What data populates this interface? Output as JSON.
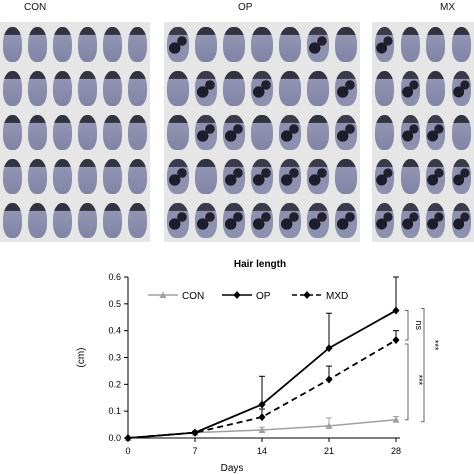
{
  "panels": [
    {
      "label": "CON"
    },
    {
      "label": "OP"
    },
    {
      "label": "MX"
    }
  ],
  "chart_data": {
    "type": "line",
    "title": "Hair length",
    "xlabel": "Days",
    "ylabel": "(cm)",
    "x": [
      0,
      7,
      14,
      21,
      28
    ],
    "xticks": [
      "0",
      "7",
      "14",
      "21",
      "28"
    ],
    "yticks": [
      "0.0",
      "0.1",
      "0.2",
      "0.3",
      "0.4",
      "0.5",
      "0.6"
    ],
    "xlim": [
      0,
      28
    ],
    "ylim": [
      0,
      0.6
    ],
    "grid": false,
    "legend_position": "top",
    "series": [
      {
        "name": "CON",
        "color": "#a0a0a0",
        "dash": "solid",
        "marker": "triangle",
        "values": [
          0,
          0.02,
          0.03,
          0.045,
          0.068
        ],
        "errors": [
          0,
          0.005,
          0.01,
          0.03,
          0.012
        ]
      },
      {
        "name": "OP",
        "color": "#000000",
        "dash": "solid",
        "marker": "diamond",
        "values": [
          0,
          0.02,
          0.125,
          0.335,
          0.475
        ],
        "errors": [
          0,
          0.005,
          0.105,
          0.13,
          0.125
        ]
      },
      {
        "name": "MXD",
        "color": "#000000",
        "dash": "dashed",
        "marker": "diamond",
        "values": [
          0,
          0.02,
          0.078,
          0.218,
          0.365
        ],
        "errors": [
          0,
          0.004,
          0.03,
          0.05,
          0.035
        ]
      }
    ],
    "annotations": [
      {
        "text": "ns",
        "between": [
          "OP",
          "MXD"
        ]
      },
      {
        "text": "***",
        "between": [
          "MXD",
          "CON"
        ]
      },
      {
        "text": "***",
        "between": [
          "OP",
          "CON"
        ]
      }
    ]
  }
}
